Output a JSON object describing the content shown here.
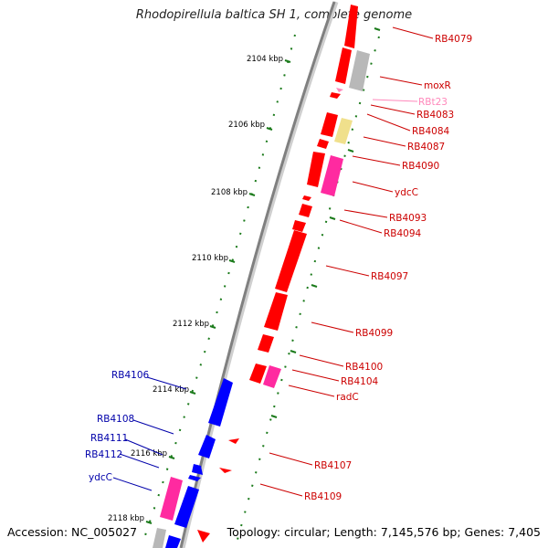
{
  "title": "Rhodopirellula baltica SH 1, complete genome",
  "accession": "Accession: NC_005027",
  "topology": "Topology: circular; Length: 7,145,576 bp; Genes: 7,405",
  "colors": {
    "forward": "#ff0000",
    "reverse": "#0000ff",
    "pseudo": "#b8b8b8",
    "rna_pink": "#ff2aa0",
    "yellow": "#f0e08c",
    "label_forward": "#cc0000",
    "label_reverse": "#0000aa",
    "label_trna": "#ff88bb",
    "tick": "#1a7a1a"
  },
  "kbp_ticks": [
    "2104 kbp",
    "2106 kbp",
    "2108 kbp",
    "2110 kbp",
    "2112 kbp",
    "2114 kbp",
    "2116 kbp",
    "2118 kbp"
  ],
  "forward_labels": [
    "RB4079",
    "moxR",
    "RBt23",
    "RB4083",
    "RB4084",
    "RB4087",
    "RB4090",
    "ydcC",
    "RB4093",
    "RB4094",
    "RB4097",
    "RB4099",
    "RB4100",
    "RB4104",
    "radC",
    "RB4107",
    "RB4109"
  ],
  "reverse_labels": [
    "RB4106",
    "RB4108",
    "RB4111",
    "RB4112",
    "ydcC"
  ]
}
